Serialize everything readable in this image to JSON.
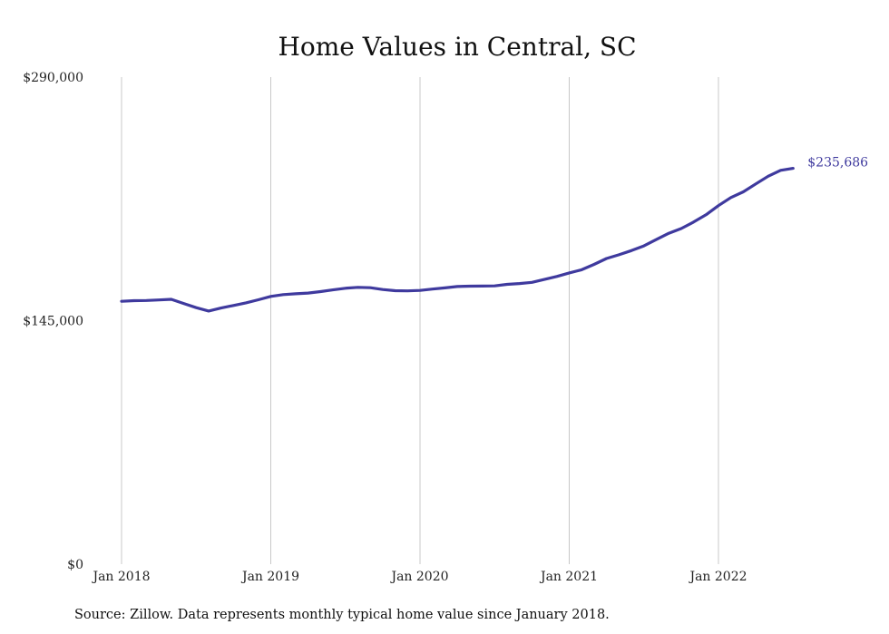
{
  "chart_data": {
    "type": "line",
    "title": "Home Values in Central, SC",
    "xlabel": "",
    "ylabel": "",
    "source": "Source: Zillow. Data represents monthly typical home value since January 2018.",
    "ylim": [
      0,
      290000
    ],
    "y_ticks": [
      {
        "value": 0,
        "label": "$0"
      },
      {
        "value": 145000,
        "label": "$145,000"
      },
      {
        "value": 290000,
        "label": "$290,000"
      }
    ],
    "x_ticks": [
      {
        "value": "2018-01",
        "label": "Jan 2018"
      },
      {
        "value": "2019-01",
        "label": "Jan 2019"
      },
      {
        "value": "2020-01",
        "label": "Jan 2020"
      },
      {
        "value": "2021-01",
        "label": "Jan 2021"
      },
      {
        "value": "2022-01",
        "label": "Jan 2022"
      }
    ],
    "grid": {
      "vertical": true,
      "horizontal": false
    },
    "line_color": "#3f3a9e",
    "grid_color": "#c8c8c8",
    "last_value_label": "$235,686",
    "series": [
      {
        "x": [
          "2018-01",
          "2018-02",
          "2018-03",
          "2018-04",
          "2018-05",
          "2018-06",
          "2018-07",
          "2018-08",
          "2018-09",
          "2018-10",
          "2018-11",
          "2018-12",
          "2019-01",
          "2019-02",
          "2019-03",
          "2019-04",
          "2019-05",
          "2019-06",
          "2019-07",
          "2019-08",
          "2019-09",
          "2019-10",
          "2019-11",
          "2019-12",
          "2020-01",
          "2020-02",
          "2020-03",
          "2020-04",
          "2020-05",
          "2020-06",
          "2020-07",
          "2020-08",
          "2020-09",
          "2020-10",
          "2020-11",
          "2020-12",
          "2021-01",
          "2021-02",
          "2021-03",
          "2021-04",
          "2021-05",
          "2021-06",
          "2021-07",
          "2021-08",
          "2021-09",
          "2021-10",
          "2021-11",
          "2021-12",
          "2022-01",
          "2022-02",
          "2022-03",
          "2022-04",
          "2022-05",
          "2022-06",
          "2022-07"
        ],
        "values": [
          156500,
          156900,
          157000,
          157300,
          157700,
          155200,
          152700,
          150700,
          152500,
          154000,
          155600,
          157400,
          159400,
          160500,
          161000,
          161400,
          162300,
          163300,
          164300,
          164800,
          164600,
          163500,
          162800,
          162700,
          163000,
          163800,
          164500,
          165300,
          165500,
          165600,
          165700,
          166600,
          167100,
          167800,
          169500,
          171300,
          173400,
          175300,
          178500,
          182000,
          184200,
          186700,
          189500,
          193300,
          197000,
          199800,
          203700,
          208000,
          213500,
          218300,
          221700,
          226400,
          231000,
          234500,
          235686
        ]
      }
    ]
  }
}
